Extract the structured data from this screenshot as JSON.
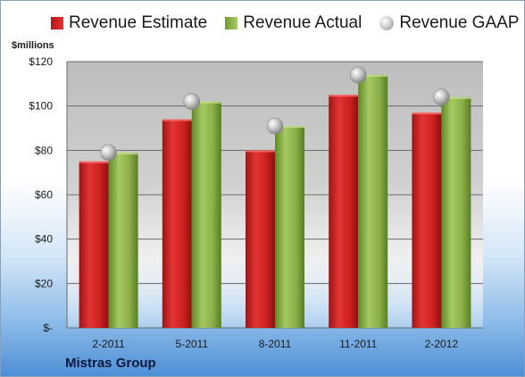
{
  "chart_data": {
    "type": "bar",
    "title": "",
    "ylabel": "$millions",
    "xlabel": "",
    "categories": [
      "2-2011",
      "5-2011",
      "8-2011",
      "11-2011",
      "2-2012"
    ],
    "series": [
      {
        "name": "Revenue Estimate",
        "kind": "bar",
        "values": [
          75,
          94,
          80,
          105,
          97
        ],
        "color": "#d42222"
      },
      {
        "name": "Revenue Actual",
        "kind": "bar",
        "values": [
          79,
          102,
          91,
          114,
          104
        ],
        "color": "#8bb04a"
      },
      {
        "name": "Revenue GAAP",
        "kind": "marker",
        "values": [
          79,
          102,
          91,
          114,
          104
        ],
        "color": "#b8b8b8"
      }
    ],
    "ylim": [
      0,
      120
    ],
    "yticks": [
      0,
      20,
      40,
      60,
      80,
      100,
      120
    ],
    "ytick_labels": [
      "$-",
      "$20",
      "$40",
      "$60",
      "$80",
      "$100",
      "$120"
    ],
    "grid": true,
    "legend_position": "top"
  },
  "footer": {
    "company": "Mistras Group"
  }
}
